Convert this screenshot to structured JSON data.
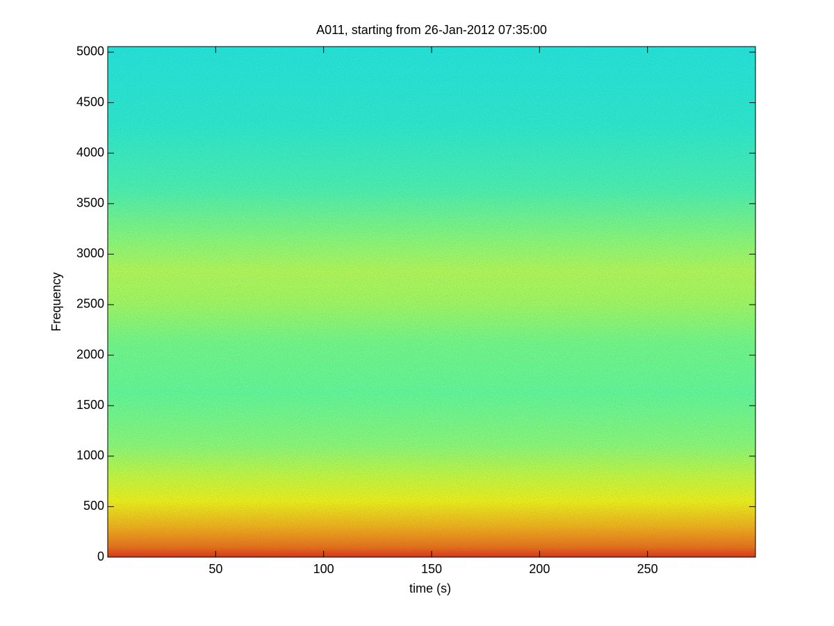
{
  "chart_data": {
    "type": "spectrogram",
    "title": "A011, starting from 26-Jan-2012 07:35:00",
    "x_label": "time (s)",
    "y_label": "Frequency",
    "xlim": [
      0,
      300
    ],
    "ylim": [
      0,
      5055
    ],
    "xticks": [
      50,
      100,
      150,
      200,
      250
    ],
    "yticks": [
      0,
      500,
      1000,
      1500,
      2000,
      2500,
      3000,
      3500,
      4000,
      4500,
      5000
    ],
    "grid": false
  }
}
